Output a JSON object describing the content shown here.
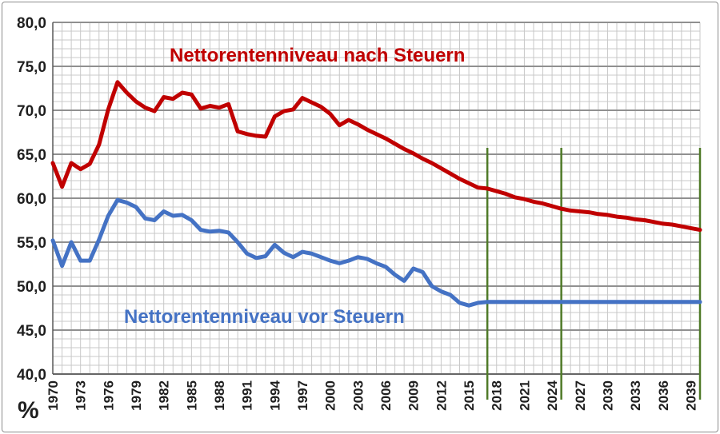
{
  "chart_data": {
    "type": "line",
    "y_unit": "%",
    "ylim": [
      40,
      80
    ],
    "y_ticks": [
      "40,0",
      "45,0",
      "50,0",
      "55,0",
      "60,0",
      "65,0",
      "70,0",
      "75,0",
      "80,0"
    ],
    "xlim": [
      1970,
      2040
    ],
    "x_ticks": [
      "1970",
      "1973",
      "1976",
      "1979",
      "1982",
      "1985",
      "1988",
      "1991",
      "1994",
      "1997",
      "2000",
      "2003",
      "2006",
      "2009",
      "2012",
      "2015",
      "2018",
      "2021",
      "2024",
      "2027",
      "2030",
      "2033",
      "2036",
      "2039"
    ],
    "grid": true,
    "vertical_markers_x": [
      2017,
      2025,
      2040
    ],
    "colors": {
      "after_tax": "#c00000",
      "before_tax": "#4472c4",
      "markers": "#4f7a28",
      "grid_major": "#909090",
      "grid_minor": "#c8c8c8"
    },
    "series": [
      {
        "name": "Nettorentenniveau nach Steuern",
        "x": [
          1970,
          1971,
          1972,
          1973,
          1974,
          1975,
          1976,
          1977,
          1978,
          1979,
          1980,
          1981,
          1982,
          1983,
          1984,
          1985,
          1986,
          1987,
          1988,
          1989,
          1990,
          1991,
          1992,
          1993,
          1994,
          1995,
          1996,
          1997,
          1998,
          1999,
          2000,
          2001,
          2002,
          2003,
          2004,
          2005,
          2006,
          2007,
          2008,
          2009,
          2010,
          2011,
          2012,
          2013,
          2014,
          2015,
          2016,
          2017,
          2018,
          2019,
          2020,
          2021,
          2022,
          2023,
          2024,
          2025,
          2026,
          2027,
          2028,
          2029,
          2030,
          2031,
          2032,
          2033,
          2034,
          2035,
          2036,
          2037,
          2038,
          2039,
          2040
        ],
        "values": [
          64.0,
          61.3,
          64.0,
          63.3,
          63.9,
          66.1,
          70.1,
          73.2,
          72.0,
          71.0,
          70.3,
          69.9,
          71.5,
          71.3,
          72.0,
          71.8,
          70.2,
          70.5,
          70.3,
          70.7,
          67.6,
          67.3,
          67.1,
          67.0,
          69.3,
          69.9,
          70.1,
          71.4,
          70.9,
          70.4,
          69.6,
          68.3,
          68.9,
          68.4,
          67.8,
          67.3,
          66.8,
          66.2,
          65.6,
          65.1,
          64.5,
          64.0,
          63.4,
          62.8,
          62.2,
          61.7,
          61.2,
          61.1,
          60.8,
          60.5,
          60.1,
          59.9,
          59.6,
          59.4,
          59.1,
          58.8,
          58.6,
          58.5,
          58.4,
          58.2,
          58.1,
          57.9,
          57.8,
          57.6,
          57.5,
          57.3,
          57.1,
          57.0,
          56.8,
          56.6,
          56.4
        ]
      },
      {
        "name": "Nettorentenniveau vor Steuern",
        "x": [
          1970,
          1971,
          1972,
          1973,
          1974,
          1975,
          1976,
          1977,
          1978,
          1979,
          1980,
          1981,
          1982,
          1983,
          1984,
          1985,
          1986,
          1987,
          1988,
          1989,
          1990,
          1991,
          1992,
          1993,
          1994,
          1995,
          1996,
          1997,
          1998,
          1999,
          2000,
          2001,
          2002,
          2003,
          2004,
          2005,
          2006,
          2007,
          2008,
          2009,
          2010,
          2011,
          2012,
          2013,
          2014,
          2015,
          2016,
          2017,
          2018,
          2019,
          2020,
          2021,
          2022,
          2023,
          2024,
          2025,
          2026,
          2027,
          2028,
          2029,
          2030,
          2031,
          2032,
          2033,
          2034,
          2035,
          2036,
          2037,
          2038,
          2039,
          2040
        ],
        "values": [
          55.2,
          52.3,
          55.0,
          52.9,
          52.9,
          55.3,
          58.0,
          59.8,
          59.5,
          59.0,
          57.7,
          57.5,
          58.5,
          58.0,
          58.1,
          57.5,
          56.4,
          56.2,
          56.3,
          56.1,
          55.0,
          53.7,
          53.2,
          53.4,
          54.7,
          53.8,
          53.3,
          53.9,
          53.7,
          53.3,
          52.9,
          52.6,
          52.9,
          53.3,
          53.1,
          52.6,
          52.2,
          51.3,
          50.6,
          52.0,
          51.6,
          50.0,
          49.4,
          49.0,
          48.1,
          47.8,
          48.1,
          48.2,
          48.2,
          48.2,
          48.2,
          48.2,
          48.2,
          48.2,
          48.2,
          48.2,
          48.2,
          48.2,
          48.2,
          48.2,
          48.2,
          48.2,
          48.2,
          48.2,
          48.2,
          48.2,
          48.2,
          48.2,
          48.2,
          48.2,
          48.2
        ]
      }
    ]
  }
}
